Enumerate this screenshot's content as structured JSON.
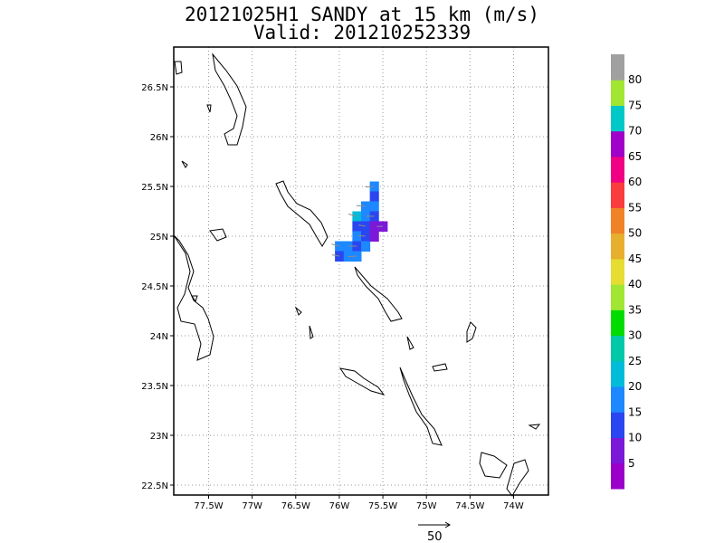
{
  "title": {
    "line1": "20121025H1 SANDY at 15 km (m/s)",
    "line2": "Valid: 201210252339"
  },
  "map": {
    "lon_range": [
      -77.9,
      -73.6
    ],
    "lat_range": [
      22.4,
      26.9
    ],
    "lon_ticks": [
      {
        "value": -77.5,
        "label": "77.5W"
      },
      {
        "value": -77.0,
        "label": "77W"
      },
      {
        "value": -76.5,
        "label": "76.5W"
      },
      {
        "value": -76.0,
        "label": "76W"
      },
      {
        "value": -75.5,
        "label": "75.5W"
      },
      {
        "value": -75.0,
        "label": "75W"
      },
      {
        "value": -74.5,
        "label": "74.5W"
      },
      {
        "value": -74.0,
        "label": "74W"
      }
    ],
    "lat_ticks": [
      {
        "value": 22.5,
        "label": "22.5N"
      },
      {
        "value": 23.0,
        "label": "23N"
      },
      {
        "value": 23.5,
        "label": "23.5N"
      },
      {
        "value": 24.0,
        "label": "24N"
      },
      {
        "value": 24.5,
        "label": "24.5N"
      },
      {
        "value": 25.0,
        "label": "25N"
      },
      {
        "value": 25.5,
        "label": "25.5N"
      },
      {
        "value": 26.0,
        "label": "26N"
      },
      {
        "value": 26.5,
        "label": "26.5N"
      }
    ],
    "grid": "dotted"
  },
  "colorbar": {
    "colors": [
      "#9a00c8",
      "#7c18d8",
      "#2a46f0",
      "#1d88ff",
      "#00bcd9",
      "#00c8a8",
      "#00dc00",
      "#a0e632",
      "#e6dc32",
      "#e6af2d",
      "#f08228",
      "#fa3c3c",
      "#f00082",
      "#a000c8",
      "#00c8c8",
      "#a0e632",
      "#a0a0a0"
    ],
    "labels": [
      "5",
      "10",
      "15",
      "20",
      "25",
      "30",
      "35",
      "40",
      "45",
      "50",
      "55",
      "60",
      "65",
      "70",
      "75",
      "80"
    ]
  },
  "wind_patches": [
    {
      "lon": -75.6,
      "lat": 25.5,
      "value": 17
    },
    {
      "lon": -75.6,
      "lat": 25.4,
      "value": 14
    },
    {
      "lon": -75.7,
      "lat": 25.3,
      "value": 18
    },
    {
      "lon": -75.6,
      "lat": 25.3,
      "value": 15
    },
    {
      "lon": -75.8,
      "lat": 25.2,
      "value": 20
    },
    {
      "lon": -75.7,
      "lat": 25.2,
      "value": 17
    },
    {
      "lon": -75.6,
      "lat": 25.2,
      "value": 14
    },
    {
      "lon": -75.8,
      "lat": 25.1,
      "value": 14
    },
    {
      "lon": -75.7,
      "lat": 25.1,
      "value": 13
    },
    {
      "lon": -75.6,
      "lat": 25.1,
      "value": 7
    },
    {
      "lon": -75.5,
      "lat": 25.1,
      "value": 8
    },
    {
      "lon": -75.8,
      "lat": 25.0,
      "value": 15
    },
    {
      "lon": -75.7,
      "lat": 25.0,
      "value": 12
    },
    {
      "lon": -75.6,
      "lat": 25.0,
      "value": 6
    },
    {
      "lon": -76.0,
      "lat": 24.9,
      "value": 18
    },
    {
      "lon": -75.9,
      "lat": 24.9,
      "value": 16
    },
    {
      "lon": -75.8,
      "lat": 24.9,
      "value": 13
    },
    {
      "lon": -75.7,
      "lat": 24.9,
      "value": 16
    },
    {
      "lon": -76.0,
      "lat": 24.8,
      "value": 14
    },
    {
      "lon": -75.9,
      "lat": 24.8,
      "value": 19
    },
    {
      "lon": -75.8,
      "lat": 24.8,
      "value": 16
    }
  ],
  "reference_vector": {
    "label": "50"
  }
}
